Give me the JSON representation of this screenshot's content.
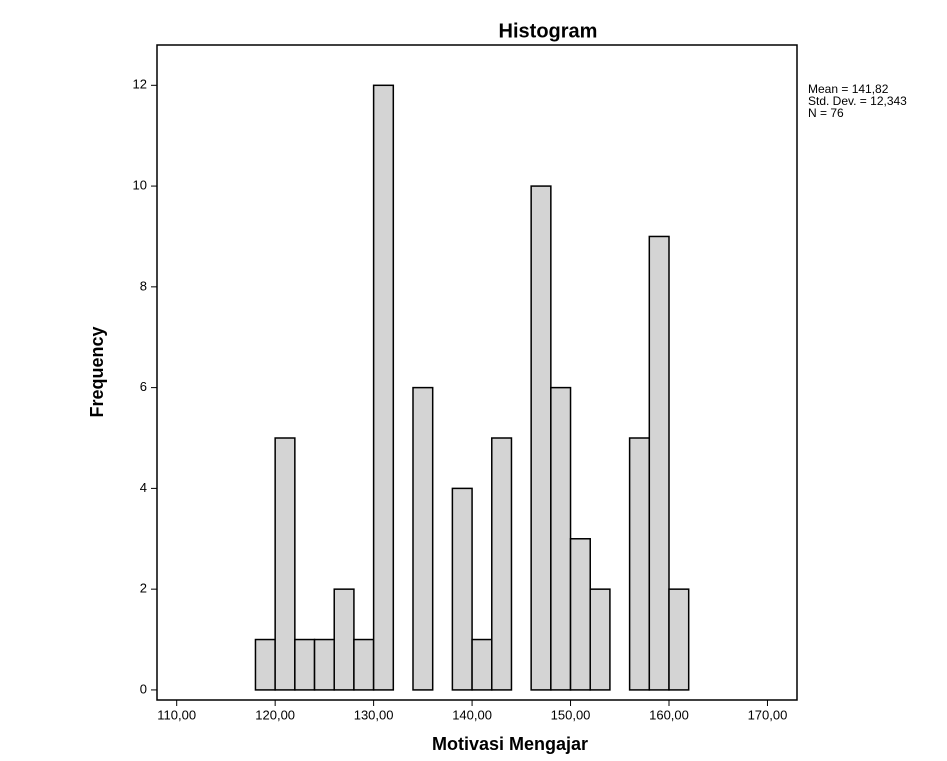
{
  "chart_data": {
    "type": "histogram",
    "title": "Histogram",
    "x_label": "Motivasi Mengajar",
    "y_label": "Frequency",
    "annotations": [
      "Mean = 141,82",
      "Std. Dev. = 12,343",
      "N = 76"
    ],
    "bins": [
      118,
      120,
      122,
      124,
      126,
      128,
      130,
      132,
      134,
      136,
      138,
      140,
      142,
      144,
      146,
      148,
      150,
      152,
      154,
      156,
      158,
      160,
      162
    ],
    "values": [
      1,
      5,
      1,
      1,
      2,
      1,
      12,
      0,
      6,
      0,
      4,
      1,
      5,
      0,
      10,
      6,
      3,
      2,
      0,
      5,
      9,
      2
    ],
    "color": "#d4d4d4",
    "xlim": [
      108,
      173
    ],
    "ylim": [
      -0.2,
      12.8
    ],
    "xticks": [
      {
        "value": 110,
        "label": "110,00"
      },
      {
        "value": 120,
        "label": "120,00"
      },
      {
        "value": 130,
        "label": "130,00"
      },
      {
        "value": 140,
        "label": "140,00"
      },
      {
        "value": 150,
        "label": "150,00"
      },
      {
        "value": 160,
        "label": "160,00"
      },
      {
        "value": 170,
        "label": "170,00"
      }
    ],
    "yticks": [
      0,
      2,
      4,
      6,
      8,
      10,
      12
    ]
  }
}
